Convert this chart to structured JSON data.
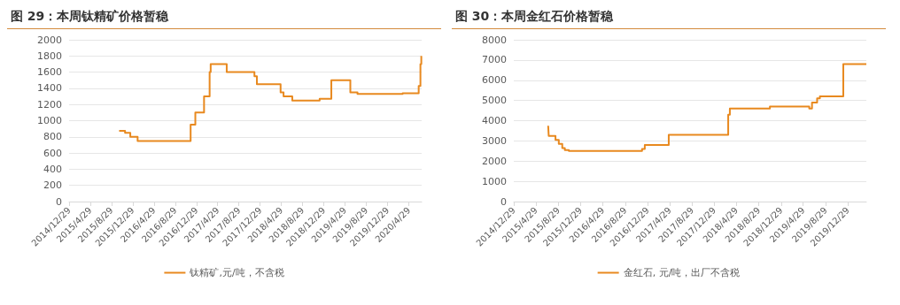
{
  "chart_data": [
    {
      "type": "step",
      "title": "图 29：本周钛精矿价格暂稳",
      "x": [
        "2015-10-12",
        "2015-11-15",
        "2015-12-15",
        "2016-01-26",
        "2016-11-25",
        "2016-12-22",
        "2017-02-10",
        "2017-03-14",
        "2017-03-20",
        "2017-06-20",
        "2017-11-26",
        "2017-12-10",
        "2018-04-25",
        "2018-05-12",
        "2018-07-01",
        "2018-12-05",
        "2019-02-10",
        "2019-05-30",
        "2019-07-10",
        "2020-03-25",
        "2020-06-25",
        "2020-07-05",
        "2020-07-10"
      ],
      "series": [
        {
          "name": "钛精矿,元/吨，不含税",
          "color": "#e8891f",
          "values": [
            875,
            850,
            800,
            750,
            950,
            1100,
            1300,
            1600,
            1700,
            1600,
            1550,
            1450,
            1350,
            1300,
            1250,
            1270,
            1500,
            1350,
            1330,
            1340,
            1430,
            1700,
            1800
          ]
        }
      ],
      "xlim": [
        "2014-12-29",
        "2020-07-12"
      ],
      "xticks": [
        {
          "value": "2014-12-29",
          "label": "2014/12/29"
        },
        {
          "value": "2015-04-29",
          "label": "2015/4/29"
        },
        {
          "value": "2015-08-29",
          "label": "2015/8/29"
        },
        {
          "value": "2015-12-29",
          "label": "2015/12/29"
        },
        {
          "value": "2016-04-29",
          "label": "2016/4/29"
        },
        {
          "value": "2016-08-29",
          "label": "2016/8/29"
        },
        {
          "value": "2016-12-29",
          "label": "2016/12/29"
        },
        {
          "value": "2017-04-29",
          "label": "2017/4/29"
        },
        {
          "value": "2017-08-29",
          "label": "2017/8/29"
        },
        {
          "value": "2017-12-29",
          "label": "2017/12/29"
        },
        {
          "value": "2018-04-29",
          "label": "2018/4/29"
        },
        {
          "value": "2018-08-29",
          "label": "2018/8/29"
        },
        {
          "value": "2018-12-29",
          "label": "2018/12/29"
        },
        {
          "value": "2019-04-29",
          "label": "2019/4/29"
        },
        {
          "value": "2019-08-29",
          "label": "2019/8/29"
        },
        {
          "value": "2019-12-29",
          "label": "2019/12/29"
        },
        {
          "value": "2020-04-29",
          "label": "2020/4/29"
        }
      ],
      "ylim": [
        0,
        2000
      ],
      "yticks": [
        0,
        200,
        400,
        600,
        800,
        1000,
        1200,
        1400,
        1600,
        1800,
        2000
      ],
      "grid": "y",
      "legend": "bottom",
      "marker": "none"
    },
    {
      "type": "step",
      "title": "图 30：本周金红石价格暂稳",
      "x": [
        "2015-07-05",
        "2015-07-08",
        "2015-08-14",
        "2015-09-01",
        "2015-09-20",
        "2015-10-04",
        "2015-10-26",
        "2016-11-29",
        "2016-12-14",
        "2017-04-24",
        "2018-03-15",
        "2018-03-24",
        "2018-10-29",
        "2019-06-01",
        "2019-06-16",
        "2019-07-14",
        "2019-07-29",
        "2019-12-04",
        "2020-04-08"
      ],
      "series": [
        {
          "name": "金红石, 元/吨，出厂不含税",
          "color": "#e8891f",
          "values": [
            3750,
            3250,
            3050,
            2850,
            2650,
            2550,
            2500,
            2600,
            2800,
            3300,
            4300,
            4600,
            4700,
            4600,
            4900,
            5100,
            5200,
            6800,
            6800
          ]
        }
      ],
      "xlim": [
        "2014-12-29",
        "2020-04-08"
      ],
      "xticks": [
        {
          "value": "2014-12-29",
          "label": "2014/12/29"
        },
        {
          "value": "2015-04-29",
          "label": "2015/4/29"
        },
        {
          "value": "2015-08-29",
          "label": "2015/8/29"
        },
        {
          "value": "2015-12-29",
          "label": "2015/12/29"
        },
        {
          "value": "2016-04-29",
          "label": "2016/4/29"
        },
        {
          "value": "2016-08-29",
          "label": "2016/8/29"
        },
        {
          "value": "2016-12-29",
          "label": "2016/12/29"
        },
        {
          "value": "2017-04-29",
          "label": "2017/4/29"
        },
        {
          "value": "2017-08-29",
          "label": "2017/8/29"
        },
        {
          "value": "2017-12-29",
          "label": "2017/12/29"
        },
        {
          "value": "2018-04-29",
          "label": "2018/4/29"
        },
        {
          "value": "2018-08-29",
          "label": "2018/8/29"
        },
        {
          "value": "2018-12-29",
          "label": "2018/12/29"
        },
        {
          "value": "2019-04-29",
          "label": "2019/4/29"
        },
        {
          "value": "2019-08-29",
          "label": "2019/8/29"
        },
        {
          "value": "2019-12-29",
          "label": "2019/12/29"
        }
      ],
      "ylim": [
        0,
        8000
      ],
      "yticks": [
        0,
        1000,
        2000,
        3000,
        4000,
        5000,
        6000,
        7000,
        8000
      ],
      "grid": "y",
      "legend": "bottom",
      "marker": "none"
    }
  ]
}
